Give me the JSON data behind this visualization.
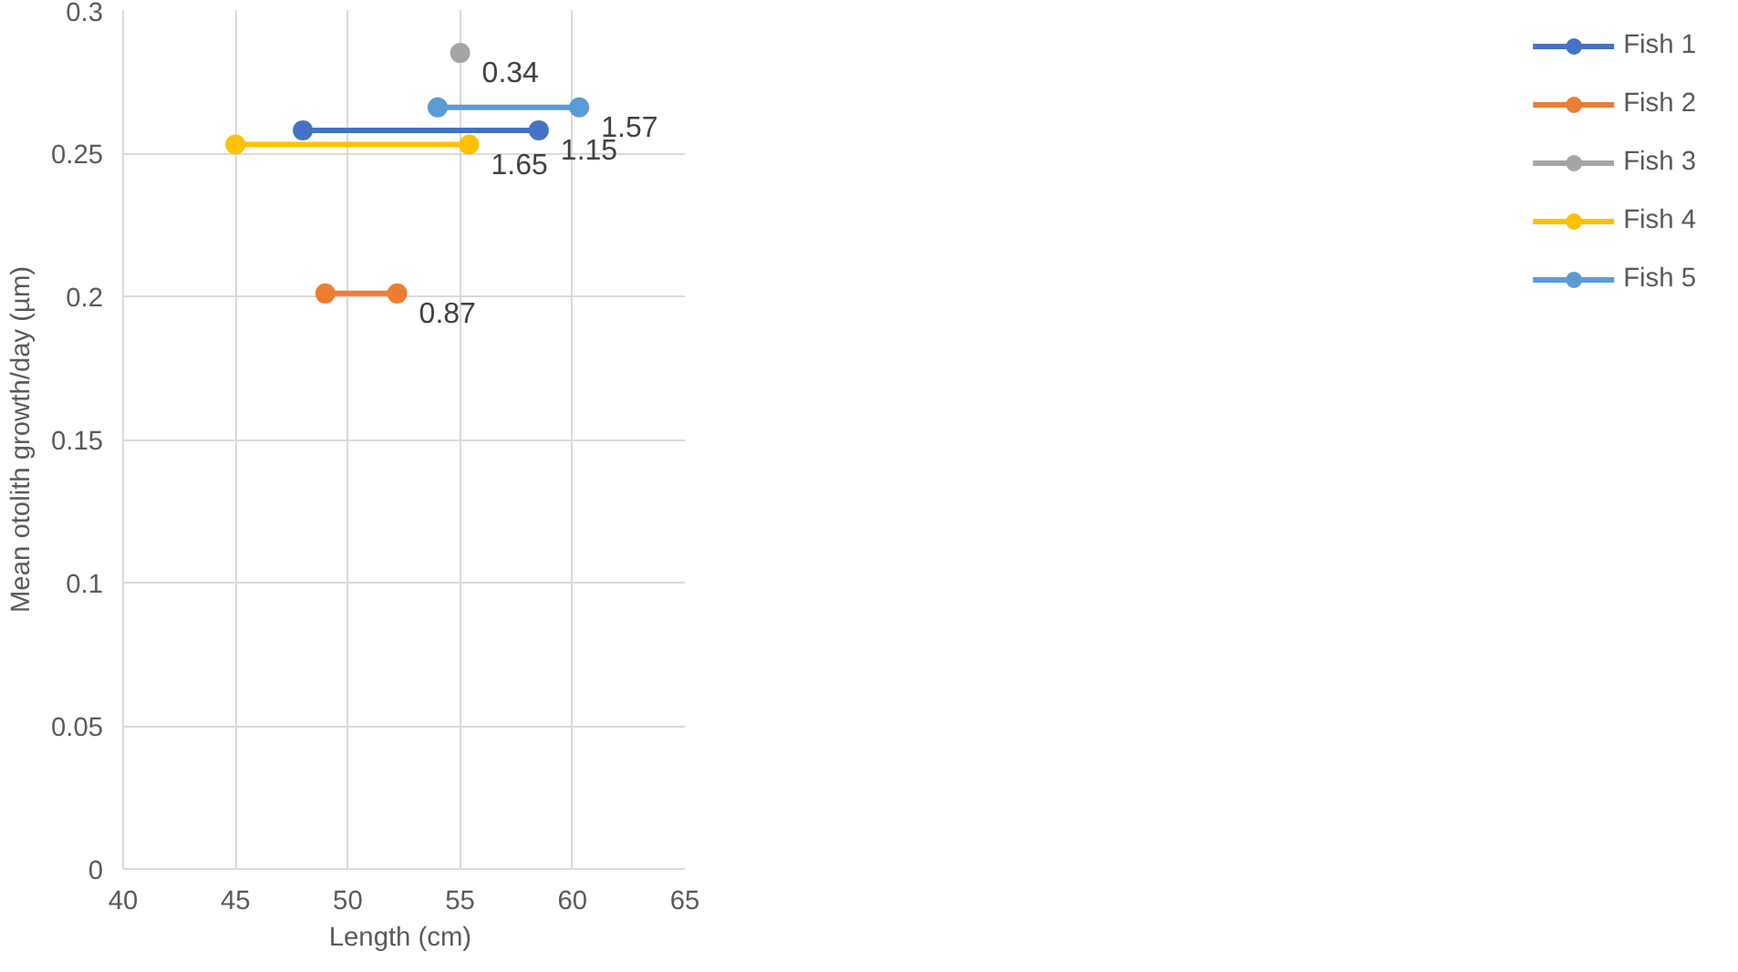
{
  "chart_data": {
    "type": "line",
    "xlabel": "Length  (cm)",
    "ylabel": "Mean otolith growth/day (µm)",
    "xlim": [
      40,
      65
    ],
    "xticks": [
      40,
      45,
      50,
      55,
      60,
      65
    ],
    "ylim": [
      0,
      0.3
    ],
    "yticks": [
      0,
      0.05,
      0.1,
      0.15,
      0.2,
      0.25,
      0.3
    ],
    "grid": true,
    "legend": "right",
    "marker": "circle",
    "line_style": "solid",
    "series": [
      {
        "name": "Fish 1",
        "color": "#4472c4",
        "x": [
          48,
          58.5
        ],
        "values": [
          0.258,
          0.258
        ]
      },
      {
        "name": "Fish 2",
        "color": "#ed7d31",
        "x": [
          49,
          52.2
        ],
        "values": [
          0.201,
          0.201
        ]
      },
      {
        "name": "Fish 3",
        "color": "#a5a5a5",
        "x": [
          55
        ],
        "values": [
          0.285
        ]
      },
      {
        "name": "Fish 4",
        "color": "#ffc000",
        "x": [
          45,
          55.4
        ],
        "values": [
          0.253,
          0.253
        ]
      },
      {
        "name": "Fish 5",
        "color": "#5b9bd5",
        "x": [
          54,
          60.3
        ],
        "values": [
          0.266,
          0.266
        ]
      }
    ],
    "annotations": [
      {
        "text": "0.34",
        "x": 55,
        "y": 0.285
      },
      {
        "text": "1.57",
        "x": 60.3,
        "y": 0.266
      },
      {
        "text": "1.65",
        "x": 55.4,
        "y": 0.253
      },
      {
        "text": "1.15",
        "x": 58.5,
        "y": 0.258
      },
      {
        "text": "0.87",
        "x": 52.2,
        "y": 0.201
      }
    ]
  }
}
